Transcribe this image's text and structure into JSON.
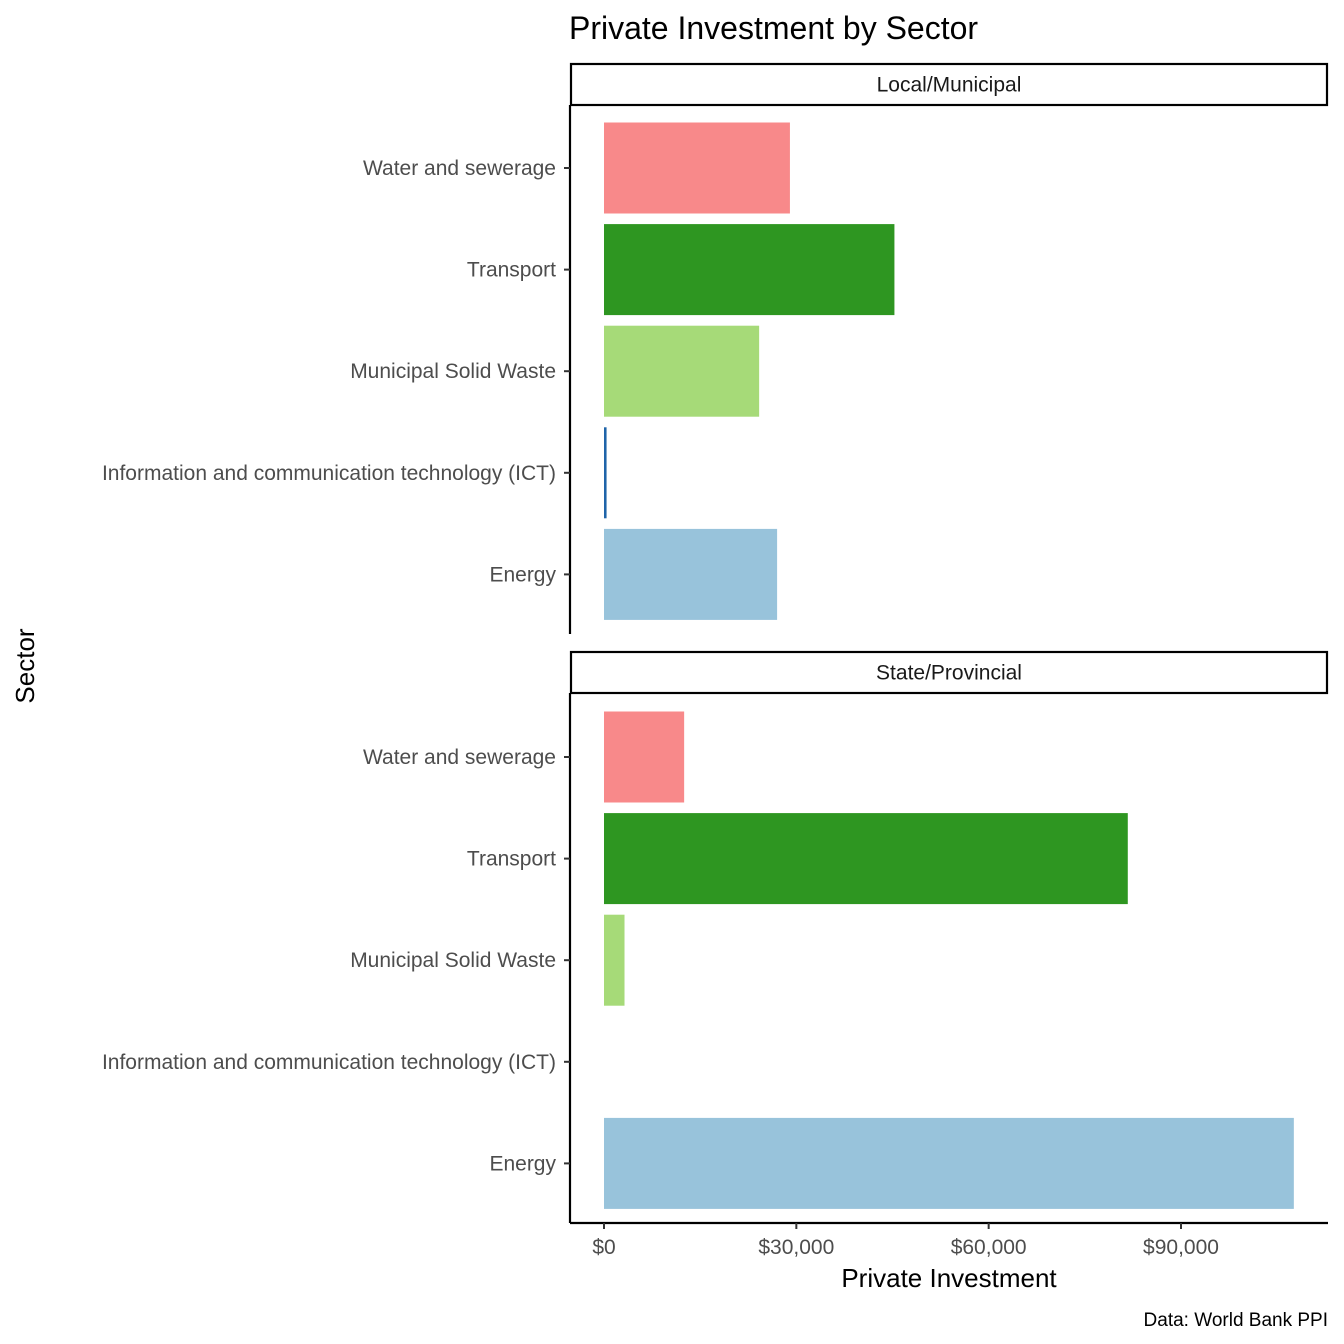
{
  "chart_data": {
    "type": "bar",
    "orientation": "horizontal",
    "title": "Private Investment by Sector",
    "xlabel": "Private Investment",
    "ylabel": "Sector",
    "caption": "Data: World Bank PPI",
    "xlim": [
      0,
      113000
    ],
    "x_ticks": [
      0,
      30000,
      60000,
      90000
    ],
    "x_tick_labels": [
      "$0",
      "$30,000",
      "$60,000",
      "$90,000"
    ],
    "categories": [
      "Water and sewerage",
      "Transport",
      "Municipal Solid Waste",
      "Information and communication technology (ICT)",
      "Energy"
    ],
    "category_colors": [
      "#f8898a",
      "#2e9621",
      "#a6da78",
      "#1f64a9",
      "#98c3db"
    ],
    "grid": false,
    "legend": "none",
    "panels": [
      {
        "label": "Local/Municipal",
        "values": [
          29000,
          45300,
          24200,
          400,
          27000
        ]
      },
      {
        "label": "State/Provincial",
        "values": [
          12500,
          81700,
          3200,
          0,
          107600
        ]
      }
    ]
  }
}
